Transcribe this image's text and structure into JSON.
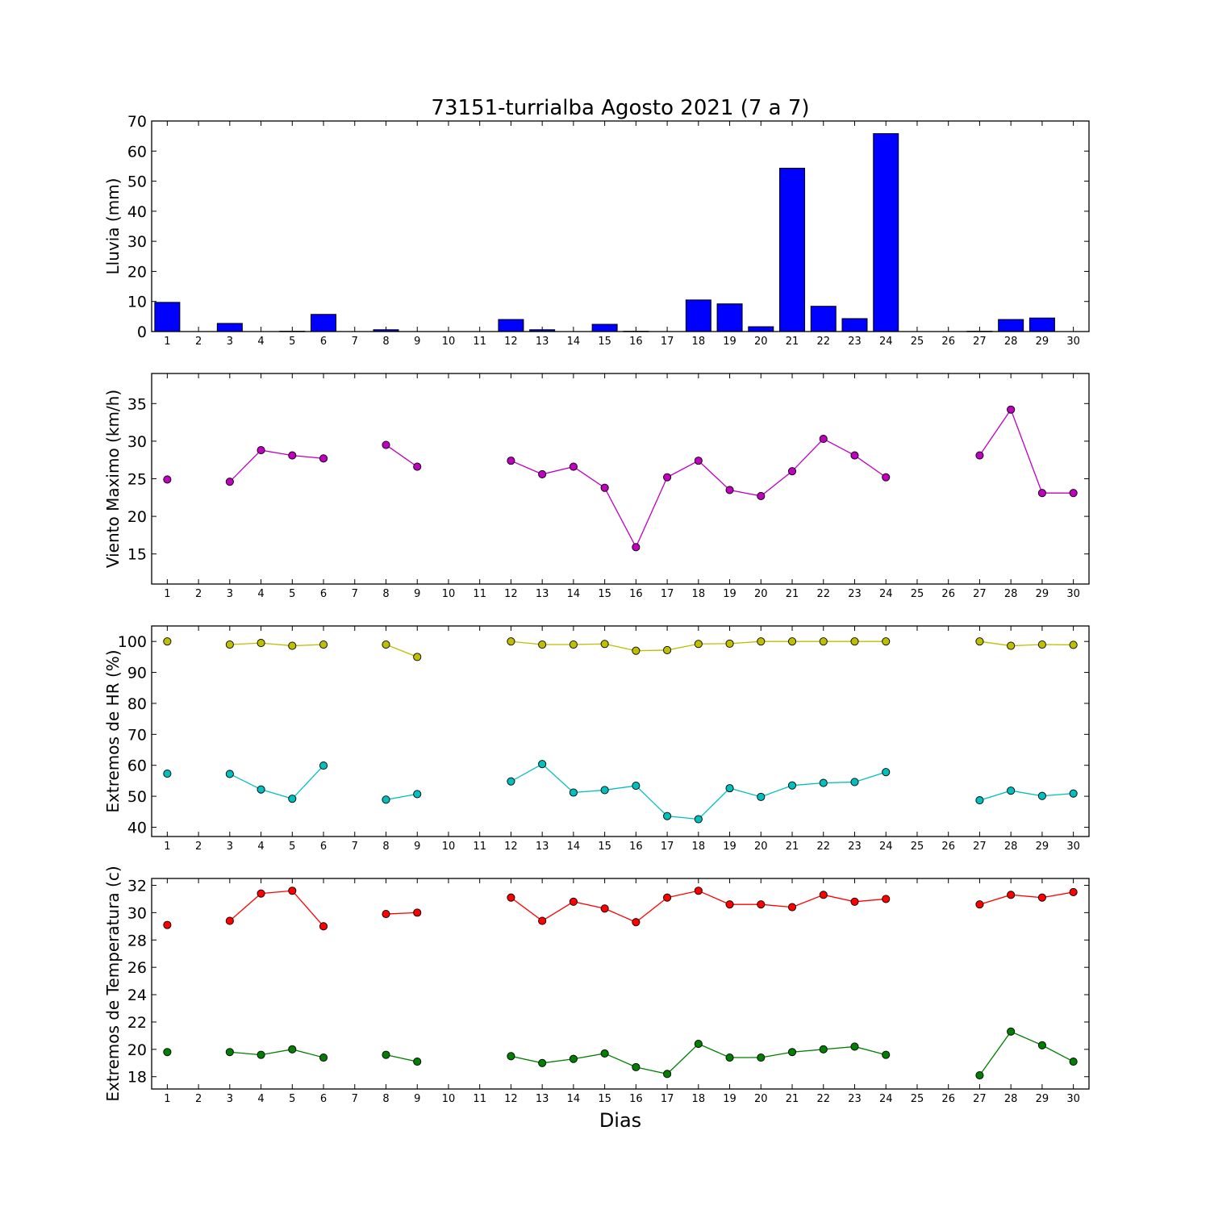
{
  "chart_data": [
    {
      "type": "bar",
      "title": "73151-turrialba Agosto 2021  (7 a 7)",
      "ylabel": "Lluvia (mm)",
      "xlabel": "",
      "ylim": [
        0,
        70
      ],
      "yticks": [
        0,
        10,
        20,
        30,
        40,
        50,
        60,
        70
      ],
      "x": [
        1,
        2,
        3,
        4,
        5,
        6,
        7,
        8,
        9,
        10,
        11,
        12,
        13,
        14,
        15,
        16,
        17,
        18,
        19,
        20,
        21,
        22,
        23,
        24,
        25,
        26,
        27,
        28,
        29,
        30
      ],
      "series": [
        {
          "color": "#0000ff",
          "values": [
            9.7,
            0,
            2.7,
            0,
            0.1,
            5.7,
            0,
            0.6,
            0,
            0,
            0,
            4.0,
            0.6,
            0,
            2.4,
            0.1,
            0,
            10.5,
            9.2,
            1.6,
            54.3,
            8.4,
            4.3,
            65.8,
            0,
            0,
            0.1,
            4.0,
            4.5,
            0
          ]
        }
      ]
    },
    {
      "type": "line",
      "ylabel": "Viento Maximo (km/h)",
      "xlabel": "",
      "ylim": [
        11,
        39
      ],
      "yticks": [
        15,
        20,
        25,
        30,
        35
      ],
      "x": [
        1,
        2,
        3,
        4,
        5,
        6,
        7,
        8,
        9,
        10,
        11,
        12,
        13,
        14,
        15,
        16,
        17,
        18,
        19,
        20,
        21,
        22,
        23,
        24,
        25,
        26,
        27,
        28,
        29,
        30
      ],
      "series": [
        {
          "color": "#bf00bf",
          "values": [
            24.9,
            null,
            24.6,
            28.8,
            28.1,
            27.7,
            null,
            29.5,
            26.6,
            null,
            null,
            27.4,
            25.6,
            26.6,
            23.8,
            15.9,
            25.2,
            27.4,
            23.5,
            22.7,
            26.0,
            30.3,
            28.1,
            25.2,
            null,
            null,
            28.1,
            34.2,
            23.1,
            23.1
          ]
        }
      ]
    },
    {
      "type": "line",
      "ylabel": "Extremos de HR (%)",
      "xlabel": "",
      "ylim": [
        37,
        105
      ],
      "yticks": [
        40,
        50,
        60,
        70,
        80,
        90,
        100
      ],
      "x": [
        1,
        2,
        3,
        4,
        5,
        6,
        7,
        8,
        9,
        10,
        11,
        12,
        13,
        14,
        15,
        16,
        17,
        18,
        19,
        20,
        21,
        22,
        23,
        24,
        25,
        26,
        27,
        28,
        29,
        30
      ],
      "series": [
        {
          "color": "#bfbf00",
          "values": [
            100,
            null,
            99,
            99.5,
            98.6,
            99,
            null,
            99,
            95,
            null,
            null,
            100,
            99,
            99,
            99.2,
            97,
            97.2,
            99.2,
            99.3,
            100,
            100,
            100,
            100,
            100,
            null,
            null,
            100,
            98.6,
            99,
            98.9
          ]
        },
        {
          "color": "#00bfbf",
          "values": [
            57.3,
            null,
            57.2,
            52.2,
            49.2,
            59.9,
            null,
            48.9,
            50.7,
            null,
            null,
            54.8,
            60.4,
            51.2,
            52.0,
            53.4,
            43.6,
            42.6,
            52.6,
            49.8,
            53.5,
            54.3,
            54.6,
            57.8,
            null,
            null,
            48.7,
            51.8,
            50.1,
            50.9
          ]
        }
      ]
    },
    {
      "type": "line",
      "ylabel": "Extremos de Temperatura (c)",
      "xlabel": "Dias",
      "ylim": [
        17.1,
        32.5
      ],
      "yticks": [
        18,
        20,
        22,
        24,
        26,
        28,
        30,
        32
      ],
      "x": [
        1,
        2,
        3,
        4,
        5,
        6,
        7,
        8,
        9,
        10,
        11,
        12,
        13,
        14,
        15,
        16,
        17,
        18,
        19,
        20,
        21,
        22,
        23,
        24,
        25,
        26,
        27,
        28,
        29,
        30
      ],
      "series": [
        {
          "color": "#ff0000",
          "values": [
            29.1,
            null,
            29.4,
            31.4,
            31.6,
            29.0,
            null,
            29.9,
            30.0,
            null,
            null,
            31.1,
            29.4,
            30.8,
            30.3,
            29.3,
            31.1,
            31.6,
            30.6,
            30.6,
            30.4,
            31.3,
            30.8,
            31.0,
            null,
            null,
            30.6,
            31.3,
            31.1,
            31.5
          ]
        },
        {
          "color": "#007f00",
          "values": [
            19.8,
            null,
            19.8,
            19.6,
            20.0,
            19.4,
            null,
            19.6,
            19.1,
            null,
            null,
            19.5,
            19.0,
            19.3,
            19.7,
            18.7,
            18.2,
            20.4,
            19.4,
            19.4,
            19.8,
            20.0,
            20.2,
            19.6,
            null,
            null,
            18.1,
            21.3,
            20.3,
            19.1
          ]
        }
      ]
    }
  ]
}
